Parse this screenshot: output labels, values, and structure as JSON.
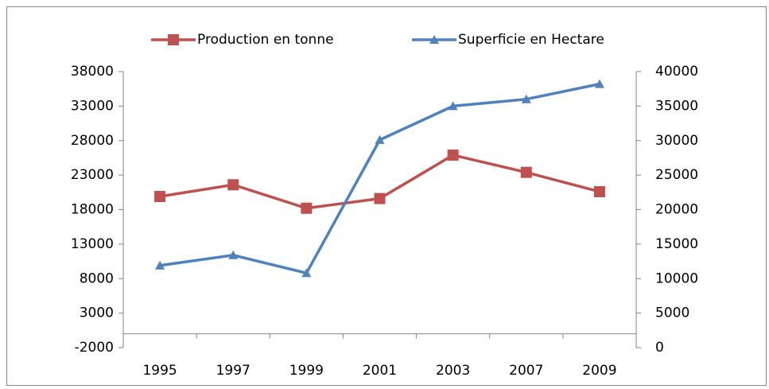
{
  "chart_data": {
    "type": "line",
    "categories": [
      "1995",
      "1997",
      "1999",
      "2001",
      "2003",
      "2007",
      "2009"
    ],
    "series": [
      {
        "name": "Production en tonne",
        "color": "#c0504d",
        "marker": "square",
        "values": [
          19900,
          21600,
          18200,
          19600,
          25900,
          23400,
          20600
        ]
      },
      {
        "name": "Superficie en Hectare",
        "color": "#4f81bd",
        "marker": "triangle",
        "axis": "y2",
        "values": [
          11900,
          13400,
          10800,
          30100,
          35000,
          36000,
          38200
        ]
      }
    ],
    "ylim": [
      -2000,
      38000
    ],
    "yticks": [
      -2000,
      3000,
      8000,
      13000,
      18000,
      23000,
      28000,
      33000,
      38000
    ],
    "y2lim": [
      0,
      40000
    ],
    "y2ticks": [
      0,
      5000,
      10000,
      15000,
      20000,
      25000,
      30000,
      35000,
      40000
    ],
    "legend": "top"
  }
}
